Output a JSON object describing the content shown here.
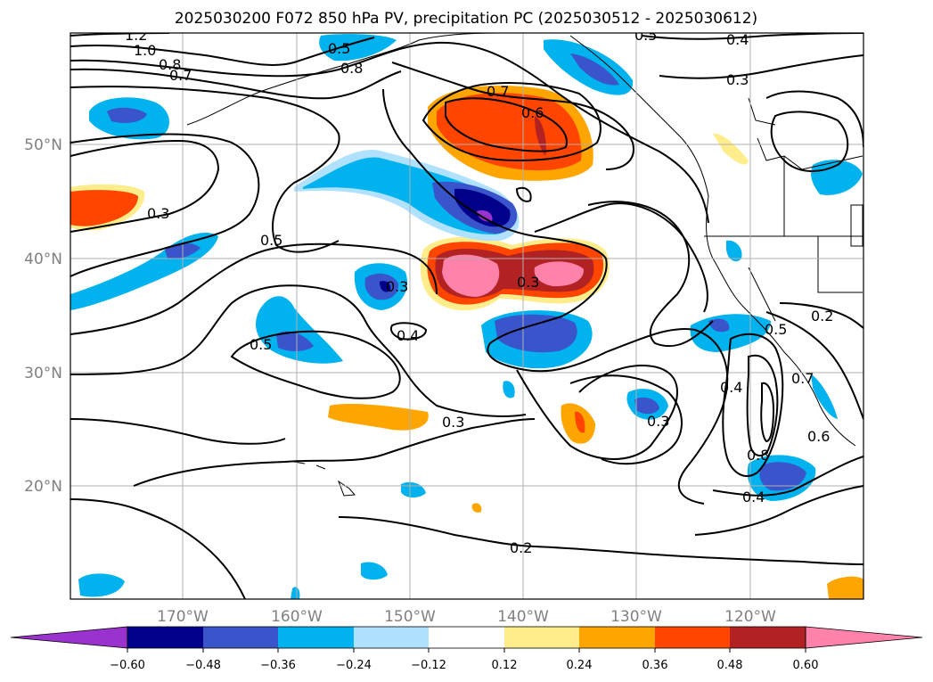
{
  "title": "2025030200 F072 850 hPa PV, precipitation PC (2025030512 - 2025030612)",
  "map": {
    "lon_labels": [
      "170°W",
      "160°W",
      "150°W",
      "140°W",
      "130°W",
      "120°W"
    ],
    "lat_labels": [
      "50°N",
      "40°N",
      "30°N",
      "20°N"
    ],
    "contour_labels": [
      "1.2",
      "1.0",
      "0.8",
      "0.7",
      "0.5",
      "0.8",
      "0.7",
      "0.6",
      "0.5",
      "0.4",
      "0.3",
      "0.3",
      "0.5",
      "0.3",
      "0.3",
      "0.4",
      "0.5",
      "0.3",
      "0.2",
      "0.4",
      "0.3",
      "0.8",
      "0.4",
      "0.5",
      "0.2",
      "0.7",
      "0.6"
    ],
    "land_color": "#ffffff",
    "contour_color": "#000000",
    "grid_color": "#b0b0b0"
  },
  "colorbar": {
    "tick_labels": [
      "−0.60",
      "−0.48",
      "−0.36",
      "−0.24",
      "−0.12",
      "0.12",
      "0.24",
      "0.36",
      "0.48",
      "0.60"
    ],
    "colors": [
      "#9a32cd",
      "#00008b",
      "#3a55cc",
      "#00b2ee",
      "#b0e2ff",
      "#ffffff",
      "#ffec8b",
      "#ffa500",
      "#ff4500",
      "#b22222",
      "#ff82ab"
    ]
  }
}
